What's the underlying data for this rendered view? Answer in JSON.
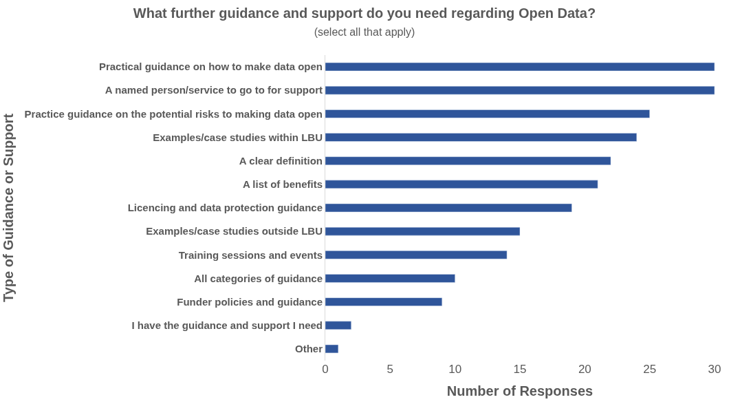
{
  "chart_data": {
    "type": "bar",
    "orientation": "horizontal",
    "title": "What further guidance and support do you need regarding Open Data?",
    "subtitle": "(select all that apply)",
    "xlabel": "Number of Responses",
    "ylabel": "Type of Guidance or Support",
    "categories": [
      "Practical guidance on how to make data open",
      "A named person/service to go to for support",
      "Practice guidance on the potential risks to making data open",
      "Examples/case studies within LBU",
      "A clear definition",
      "A list of benefits",
      "Licencing and data protection guidance",
      "Examples/case studies outside LBU",
      "Training sessions and events",
      "All categories of guidance",
      "Funder policies and guidance",
      "I have the guidance and support I need",
      "Other"
    ],
    "values": [
      30,
      30,
      25,
      24,
      22,
      21,
      19,
      15,
      14,
      10,
      9,
      2,
      1
    ],
    "color": "#2f559a",
    "xlim": [
      0,
      30
    ],
    "xticks": [
      0,
      5,
      10,
      15,
      20,
      25,
      30
    ],
    "legend": false
  }
}
